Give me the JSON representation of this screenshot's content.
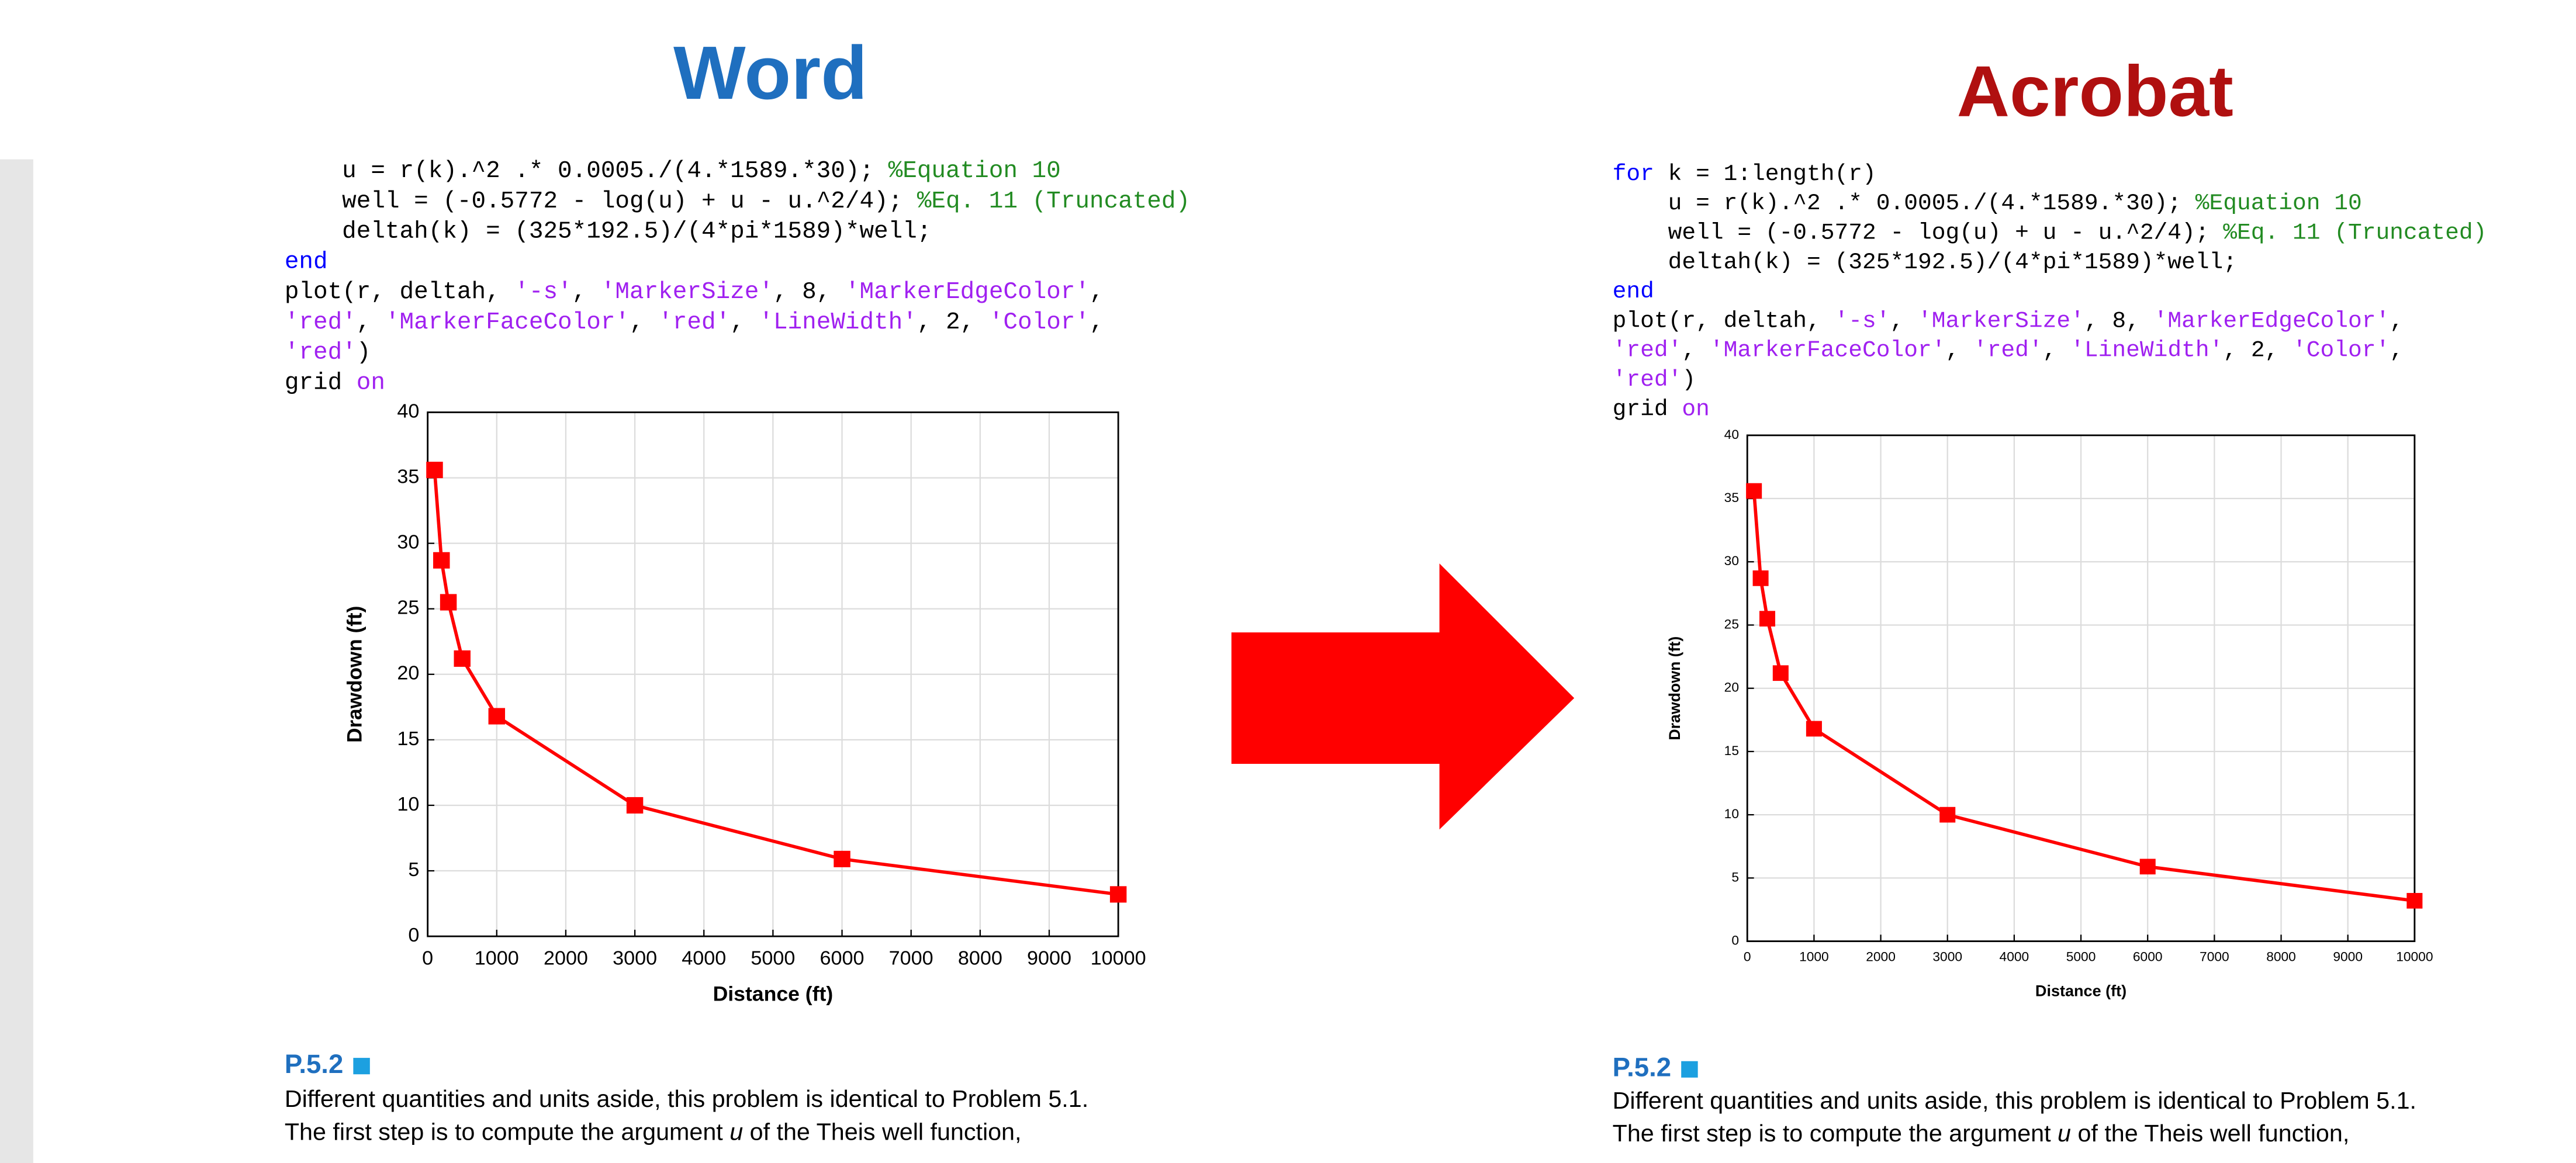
{
  "headings": [
    "Word",
    "Acrobat"
  ],
  "panels": [
    {
      "code": [
        [
          {
            "text": "    u = r(k).^2 .* 0.0005./(4.*1589.*30); ",
            "color": "#000000"
          },
          {
            "text": "%Equation 10",
            "color": "#228b22"
          }
        ],
        [
          {
            "text": "    well = (-0.5772 - log(u) + u - u.^2/4); ",
            "color": "#000000"
          },
          {
            "text": "%Eq. 11 (Truncated)",
            "color": "#228b22"
          }
        ],
        [
          {
            "text": "    deltah(k) = (325*192.5)/(4*pi*1589)*well;",
            "color": "#000000"
          }
        ],
        [
          {
            "text": "end",
            "color": "#0000ff"
          }
        ],
        [
          {
            "text": "plot(r, deltah, ",
            "color": "#000000"
          },
          {
            "text": "'-s'",
            "color": "#a020f0"
          },
          {
            "text": ", ",
            "color": "#000000"
          },
          {
            "text": "'MarkerSize'",
            "color": "#a020f0"
          },
          {
            "text": ", 8, ",
            "color": "#000000"
          },
          {
            "text": "'MarkerEdgeColor'",
            "color": "#a020f0"
          },
          {
            "text": ",",
            "color": "#000000"
          }
        ],
        [
          {
            "text": "'red'",
            "color": "#a020f0"
          },
          {
            "text": ", ",
            "color": "#000000"
          },
          {
            "text": "'MarkerFaceColor'",
            "color": "#a020f0"
          },
          {
            "text": ", ",
            "color": "#000000"
          },
          {
            "text": "'red'",
            "color": "#a020f0"
          },
          {
            "text": ", ",
            "color": "#000000"
          },
          {
            "text": "'LineWidth'",
            "color": "#a020f0"
          },
          {
            "text": ", 2, ",
            "color": "#000000"
          },
          {
            "text": "'Color'",
            "color": "#a020f0"
          },
          {
            "text": ",",
            "color": "#000000"
          }
        ],
        [
          {
            "text": "'red'",
            "color": "#a020f0"
          },
          {
            "text": ")",
            "color": "#000000"
          }
        ],
        [
          {
            "text": "grid ",
            "color": "#000000"
          },
          {
            "text": "on",
            "color": "#a020f0"
          }
        ]
      ],
      "section": "P.5.2",
      "paragraph": [
        [
          "Different quantities and units aside, this problem is identical to Problem 5.1."
        ],
        [
          "The first step is to compute the argument ",
          "u",
          " of the Theis well function,"
        ]
      ]
    },
    {
      "code": [
        [
          {
            "text": "for",
            "color": "#0000ff"
          },
          {
            "text": " k = 1:length(r)",
            "color": "#000000"
          }
        ],
        [
          {
            "text": "    u = r(k).^2 .* 0.0005./(4.*1589.*30); ",
            "color": "#000000"
          },
          {
            "text": "%Equation 10",
            "color": "#228b22"
          }
        ],
        [
          {
            "text": "    well = (-0.5772 - log(u) + u - u.^2/4); ",
            "color": "#000000"
          },
          {
            "text": "%Eq. 11 (Truncated)",
            "color": "#228b22"
          }
        ],
        [
          {
            "text": "    deltah(k) = (325*192.5)/(4*pi*1589)*well;",
            "color": "#000000"
          }
        ],
        [
          {
            "text": "end",
            "color": "#0000ff"
          }
        ],
        [
          {
            "text": "plot(r, deltah, ",
            "color": "#000000"
          },
          {
            "text": "'-s'",
            "color": "#a020f0"
          },
          {
            "text": ", ",
            "color": "#000000"
          },
          {
            "text": "'MarkerSize'",
            "color": "#a020f0"
          },
          {
            "text": ", 8, ",
            "color": "#000000"
          },
          {
            "text": "'MarkerEdgeColor'",
            "color": "#a020f0"
          },
          {
            "text": ",",
            "color": "#000000"
          }
        ],
        [
          {
            "text": "'red'",
            "color": "#a020f0"
          },
          {
            "text": ", ",
            "color": "#000000"
          },
          {
            "text": "'MarkerFaceColor'",
            "color": "#a020f0"
          },
          {
            "text": ", ",
            "color": "#000000"
          },
          {
            "text": "'red'",
            "color": "#a020f0"
          },
          {
            "text": ", ",
            "color": "#000000"
          },
          {
            "text": "'LineWidth'",
            "color": "#a020f0"
          },
          {
            "text": ", 2, ",
            "color": "#000000"
          },
          {
            "text": "'Color'",
            "color": "#a020f0"
          },
          {
            "text": ",",
            "color": "#000000"
          }
        ],
        [
          {
            "text": "'red'",
            "color": "#a020f0"
          },
          {
            "text": ")",
            "color": "#000000"
          }
        ],
        [
          {
            "text": "grid ",
            "color": "#000000"
          },
          {
            "text": "on",
            "color": "#a020f0"
          }
        ]
      ],
      "section": "P.5.2",
      "paragraph": [
        [
          "Different quantities and units aside, this problem is identical to Problem 5.1."
        ],
        [
          "The first step is to compute the argument ",
          "u",
          " of the Theis well function,"
        ]
      ]
    }
  ],
  "chart_data": [
    {
      "type": "line",
      "xlabel": "Distance (ft)",
      "ylabel": "Drawdown (ft)",
      "x": [
        100,
        200,
        300,
        500,
        1000,
        3000,
        6000,
        10000
      ],
      "series": [
        {
          "color": "#ff0000",
          "values": [
            35.6,
            28.7,
            25.5,
            21.2,
            16.8,
            10.0,
            5.9,
            3.2
          ]
        }
      ],
      "xlim": [
        0,
        10000
      ],
      "ylim": [
        0,
        40
      ],
      "xticks": [
        0,
        1000,
        2000,
        3000,
        4000,
        5000,
        6000,
        7000,
        8000,
        9000,
        10000
      ],
      "yticks": [
        0,
        5,
        10,
        15,
        20,
        25,
        30,
        35,
        40
      ],
      "grid": true,
      "marker": "square"
    },
    {
      "type": "line",
      "xlabel": "Distance (ft)",
      "ylabel": "Drawdown (ft)",
      "x": [
        100,
        200,
        300,
        500,
        1000,
        3000,
        6000,
        10000
      ],
      "series": [
        {
          "color": "#ff0000",
          "values": [
            35.6,
            28.7,
            25.5,
            21.2,
            16.8,
            10.0,
            5.9,
            3.2
          ]
        }
      ],
      "xlim": [
        0,
        10000
      ],
      "ylim": [
        0,
        40
      ],
      "xticks": [
        0,
        1000,
        2000,
        3000,
        4000,
        5000,
        6000,
        7000,
        8000,
        9000,
        10000
      ],
      "yticks": [
        0,
        5,
        10,
        15,
        20,
        25,
        30,
        35,
        40
      ],
      "grid": true,
      "marker": "square"
    }
  ]
}
